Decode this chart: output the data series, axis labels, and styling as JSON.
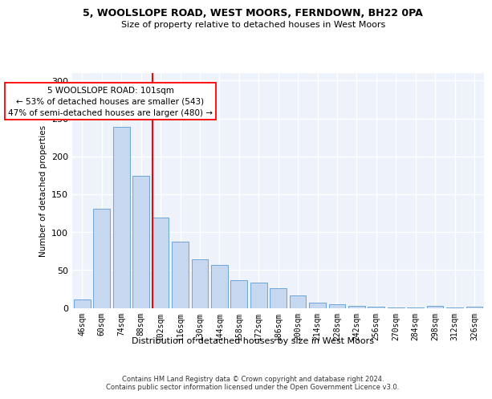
{
  "title1": "5, WOOLSLOPE ROAD, WEST MOORS, FERNDOWN, BH22 0PA",
  "title2": "Size of property relative to detached houses in West Moors",
  "xlabel": "Distribution of detached houses by size in West Moors",
  "ylabel": "Number of detached properties",
  "categories": [
    "46sqm",
    "60sqm",
    "74sqm",
    "88sqm",
    "102sqm",
    "116sqm",
    "130sqm",
    "144sqm",
    "158sqm",
    "172sqm",
    "186sqm",
    "200sqm",
    "214sqm",
    "228sqm",
    "242sqm",
    "256sqm",
    "270sqm",
    "284sqm",
    "298sqm",
    "312sqm",
    "326sqm"
  ],
  "bar_heights": [
    11,
    131,
    239,
    174,
    119,
    87,
    64,
    57,
    37,
    33,
    26,
    16,
    7,
    5,
    3,
    2,
    1,
    1,
    3,
    1,
    2
  ],
  "bar_color": "#c5d8f0",
  "bar_edge_color": "#5b9bd5",
  "vline_color": "red",
  "annotation_title": "5 WOOLSLOPE ROAD: 101sqm",
  "annotation_line1": "← 53% of detached houses are smaller (543)",
  "annotation_line2": "47% of semi-detached houses are larger (480) →",
  "footnote1": "Contains HM Land Registry data © Crown copyright and database right 2024.",
  "footnote2": "Contains public sector information licensed under the Open Government Licence v3.0.",
  "bg_color": "#eef3fb",
  "grid_color": "white",
  "ylim": [
    0,
    310
  ],
  "yticks": [
    0,
    50,
    100,
    150,
    200,
    250,
    300
  ]
}
